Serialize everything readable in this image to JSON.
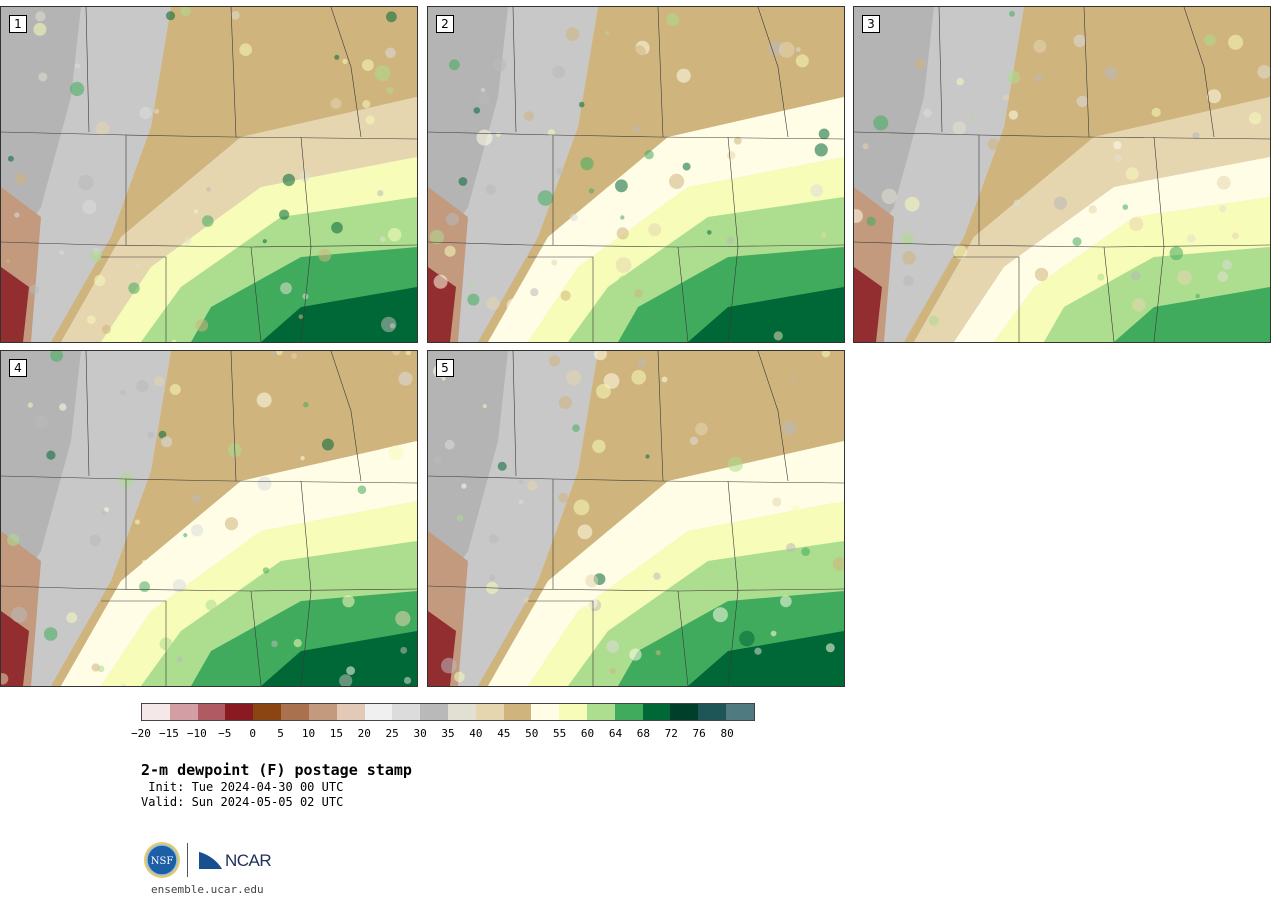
{
  "panels": [
    {
      "label": "1",
      "pattern": "early"
    },
    {
      "label": "2",
      "pattern": "mid"
    },
    {
      "label": "3",
      "pattern": "dry"
    },
    {
      "label": "4",
      "pattern": "mid"
    },
    {
      "label": "5",
      "pattern": "late"
    }
  ],
  "colorbar": {
    "colors": [
      "#f5e8e8",
      "#d39ea4",
      "#b05a63",
      "#8a1a22",
      "#8b4513",
      "#a9714d",
      "#c39a7e",
      "#e3c9b7",
      "#f0f0f0",
      "#dcdcdc",
      "#b9b9b9",
      "#e2e0d2",
      "#e5d6b0",
      "#cfb47e",
      "#fffde6",
      "#f7fcb9",
      "#addd8e",
      "#41ab5d",
      "#006837",
      "#00402a",
      "#1e5658",
      "#4e7a80"
    ],
    "ticks": [
      "-20",
      "-15",
      "-10",
      "-5",
      "0",
      "5",
      "10",
      "15",
      "20",
      "25",
      "30",
      "35",
      "40",
      "45",
      "50",
      "55",
      "60",
      "64",
      "68",
      "72",
      "76",
      "80"
    ]
  },
  "title": "2-m dewpoint (F) postage stamp",
  "init": " Init: Tue 2024-04-30 00 UTC",
  "valid": "Valid: Sun 2024-05-05 02 UTC",
  "logos": {
    "nsf": "NSF",
    "ncar": "NCAR"
  },
  "site": "ensemble.ucar.edu"
}
